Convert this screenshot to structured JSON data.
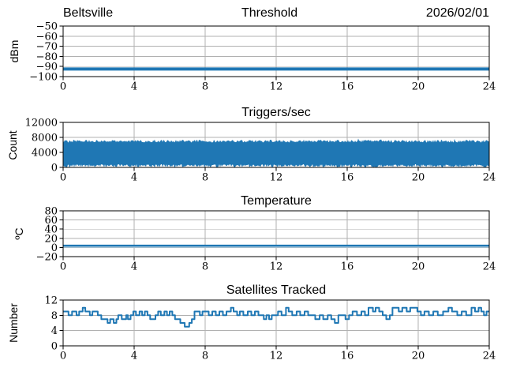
{
  "figure": {
    "station": "Beltsville",
    "date": "2026/02/01",
    "accent_color": "#1f77b4",
    "secondary_line_color": "#9dc3dd",
    "grid_color": "#b0b0b0",
    "spine_color": "#000000",
    "background": "#ffffff"
  },
  "chart_data": [
    {
      "type": "line",
      "title": "Threshold",
      "title_left": "Beltsville",
      "title_right": "2026/02/01",
      "ylabel": "dBm",
      "ylim": [
        -100,
        -50
      ],
      "yticks": [
        -100,
        -90,
        -80,
        -70,
        -60,
        -50
      ],
      "xlim": [
        0,
        24
      ],
      "xticks": [
        0,
        4,
        8,
        12,
        16,
        20,
        24
      ],
      "grid": true,
      "legend": "none",
      "series": [
        {
          "name": "threshold-dbm",
          "style": "hline",
          "value": -92.5,
          "color": "#1f77b4",
          "width": 4
        }
      ]
    },
    {
      "type": "area",
      "title": "Triggers/sec",
      "ylabel": "Count",
      "ylim": [
        0,
        12000
      ],
      "yticks": [
        0,
        4000,
        8000,
        12000
      ],
      "xlim": [
        0,
        24
      ],
      "xticks": [
        0,
        4,
        8,
        12,
        16,
        20,
        24
      ],
      "grid": true,
      "legend": "none",
      "series": [
        {
          "name": "triggers-per-sec",
          "style": "noise-band",
          "top_mean": 7000,
          "top_jitter": 350,
          "bottom_mean": 450,
          "bottom_jitter": 400,
          "color": "#1f77b4",
          "seed": 42
        }
      ]
    },
    {
      "type": "line",
      "title": "Temperature",
      "ylabel": "ºC",
      "ylim": [
        -20,
        80
      ],
      "yticks": [
        -20,
        0,
        20,
        40,
        60,
        80
      ],
      "xlim": [
        0,
        24
      ],
      "xticks": [
        0,
        4,
        8,
        12,
        16,
        20,
        24
      ],
      "grid": true,
      "legend": "none",
      "series": [
        {
          "name": "temperature-c",
          "style": "hline",
          "value": 3.5,
          "color": "#1f77b4",
          "width": 3
        },
        {
          "name": "temperature-underline",
          "style": "hline",
          "value": 0.8,
          "color": "#9dc3dd",
          "width": 1.5
        }
      ]
    },
    {
      "type": "line",
      "title": "Satellites Tracked",
      "ylabel": "Number",
      "ylim": [
        0,
        12
      ],
      "yticks": [
        0,
        4,
        8,
        12
      ],
      "xlim": [
        0,
        24
      ],
      "xticks": [
        0,
        4,
        8,
        12,
        16,
        20,
        24
      ],
      "grid": true,
      "legend": "none",
      "series": [
        {
          "name": "satellites-tracked",
          "style": "step",
          "color": "#1f77b4",
          "width": 2,
          "points": [
            [
              0,
              9
            ],
            [
              0.3,
              8
            ],
            [
              0.5,
              9
            ],
            [
              0.75,
              8
            ],
            [
              0.9,
              9
            ],
            [
              1.1,
              10
            ],
            [
              1.25,
              9
            ],
            [
              1.5,
              8
            ],
            [
              1.65,
              9
            ],
            [
              1.95,
              8
            ],
            [
              2.15,
              7
            ],
            [
              2.5,
              6
            ],
            [
              2.65,
              7
            ],
            [
              2.85,
              6
            ],
            [
              3.0,
              7
            ],
            [
              3.1,
              8
            ],
            [
              3.3,
              7
            ],
            [
              3.55,
              8
            ],
            [
              3.65,
              7
            ],
            [
              3.8,
              8
            ],
            [
              3.95,
              9
            ],
            [
              4.1,
              8
            ],
            [
              4.3,
              9
            ],
            [
              4.45,
              8
            ],
            [
              4.6,
              9
            ],
            [
              4.75,
              8
            ],
            [
              4.9,
              7
            ],
            [
              5.2,
              8
            ],
            [
              5.35,
              9
            ],
            [
              5.5,
              8
            ],
            [
              5.7,
              9
            ],
            [
              5.85,
              8
            ],
            [
              6.0,
              9
            ],
            [
              6.15,
              8
            ],
            [
              6.3,
              7
            ],
            [
              6.6,
              6
            ],
            [
              6.85,
              5
            ],
            [
              7.1,
              6
            ],
            [
              7.25,
              7
            ],
            [
              7.4,
              9
            ],
            [
              7.7,
              8
            ],
            [
              7.85,
              9
            ],
            [
              8.2,
              8
            ],
            [
              8.4,
              9
            ],
            [
              8.6,
              8
            ],
            [
              8.8,
              9
            ],
            [
              9.0,
              8
            ],
            [
              9.2,
              9
            ],
            [
              9.45,
              10
            ],
            [
              9.6,
              9
            ],
            [
              9.8,
              8
            ],
            [
              9.95,
              9
            ],
            [
              10.15,
              8
            ],
            [
              10.4,
              9
            ],
            [
              10.6,
              8
            ],
            [
              10.8,
              9
            ],
            [
              11.0,
              8
            ],
            [
              11.3,
              7
            ],
            [
              11.45,
              8
            ],
            [
              11.6,
              7
            ],
            [
              11.75,
              8
            ],
            [
              12.1,
              9
            ],
            [
              12.3,
              8
            ],
            [
              12.55,
              10
            ],
            [
              12.7,
              9
            ],
            [
              12.9,
              8
            ],
            [
              13.15,
              9
            ],
            [
              13.35,
              8
            ],
            [
              13.6,
              9
            ],
            [
              13.8,
              8
            ],
            [
              14.2,
              7
            ],
            [
              14.45,
              8
            ],
            [
              14.65,
              7
            ],
            [
              14.9,
              8
            ],
            [
              15.1,
              7
            ],
            [
              15.3,
              6
            ],
            [
              15.5,
              8
            ],
            [
              15.9,
              7
            ],
            [
              16.1,
              8
            ],
            [
              16.3,
              9
            ],
            [
              16.55,
              8
            ],
            [
              16.8,
              9
            ],
            [
              17.0,
              8
            ],
            [
              17.2,
              10
            ],
            [
              17.45,
              9
            ],
            [
              17.6,
              10
            ],
            [
              17.8,
              9
            ],
            [
              18.0,
              8
            ],
            [
              18.2,
              7
            ],
            [
              18.4,
              8
            ],
            [
              18.55,
              10
            ],
            [
              18.9,
              9
            ],
            [
              19.1,
              10
            ],
            [
              19.35,
              9
            ],
            [
              19.55,
              10
            ],
            [
              19.95,
              9
            ],
            [
              20.15,
              8
            ],
            [
              20.35,
              9
            ],
            [
              20.6,
              8
            ],
            [
              20.85,
              9
            ],
            [
              21.1,
              8
            ],
            [
              21.4,
              9
            ],
            [
              21.7,
              10
            ],
            [
              21.9,
              9
            ],
            [
              22.2,
              8
            ],
            [
              22.45,
              9
            ],
            [
              22.7,
              8
            ],
            [
              23.0,
              10
            ],
            [
              23.2,
              9
            ],
            [
              23.4,
              10
            ],
            [
              23.55,
              9
            ],
            [
              23.7,
              8
            ],
            [
              23.85,
              9
            ],
            [
              24,
              9
            ]
          ]
        }
      ]
    }
  ]
}
